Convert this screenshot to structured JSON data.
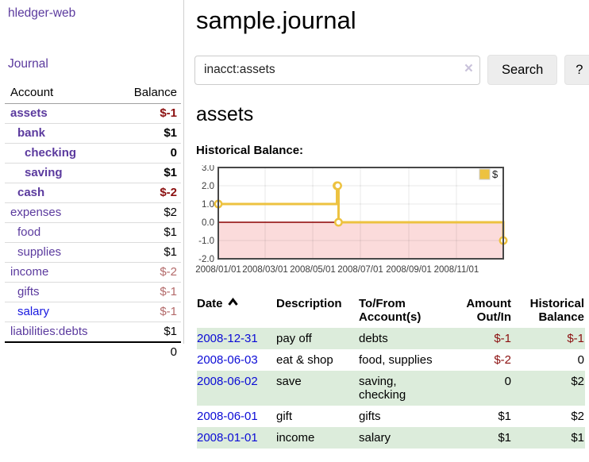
{
  "app_title": "hledger-web",
  "sidebar": {
    "journal_label": "Journal",
    "accounts_table": {
      "account_header": "Account",
      "balance_header": "Balance",
      "rows": [
        {
          "account": "assets",
          "balance": "$-1",
          "level": 1,
          "bold": true,
          "value_style": "negative-strong"
        },
        {
          "account": "bank",
          "balance": "$1",
          "level": 2,
          "bold": true,
          "value_style": "normal"
        },
        {
          "account": "checking",
          "balance": "0",
          "level": 3,
          "bold": true,
          "value_style": "normal"
        },
        {
          "account": "saving",
          "balance": "$1",
          "level": 3,
          "bold": true,
          "value_style": "normal"
        },
        {
          "account": "cash",
          "balance": "$-2",
          "level": 2,
          "bold": true,
          "value_style": "negative-strong"
        },
        {
          "account": "expenses",
          "balance": "$2",
          "level": 1,
          "bold": false,
          "value_style": "normal"
        },
        {
          "account": "food",
          "balance": "$1",
          "level": 2,
          "bold": false,
          "value_style": "normal"
        },
        {
          "account": "supplies",
          "balance": "$1",
          "level": 2,
          "bold": false,
          "value_style": "normal"
        },
        {
          "account": "income",
          "balance": "$-2",
          "level": 1,
          "bold": false,
          "value_style": "negative-muted"
        },
        {
          "account": "gifts",
          "balance": "$-1",
          "level": 2,
          "bold": false,
          "value_style": "negative-muted"
        },
        {
          "account": "salary",
          "balance": "$-1",
          "level": 2,
          "bold": false,
          "value_style": "negative-muted",
          "unvisited": true
        },
        {
          "account": "liabilities:debts",
          "balance": "$1",
          "level": 1,
          "bold": false,
          "value_style": "normal"
        }
      ],
      "total": "0"
    }
  },
  "main": {
    "title": "sample.journal",
    "search": {
      "value": "inacct:assets",
      "clear_icon": "×",
      "search_button": "Search",
      "help_button": "?"
    },
    "account_heading": "assets",
    "chart_title": "Historical Balance:"
  },
  "register": {
    "headers": {
      "date": "Date",
      "description": "Description",
      "accounts": "To/From Account(s)",
      "amount": "Amount Out/In",
      "balance": "Historical Balance"
    },
    "sort": "date-ascending",
    "rows": [
      {
        "date": "2008-12-31",
        "description": "pay off",
        "accounts": "debts",
        "amount": "$-1",
        "amount_negative": true,
        "balance": "$-1",
        "balance_negative": true
      },
      {
        "date": "2008-06-03",
        "description": "eat & shop",
        "accounts": "food, supplies",
        "amount": "$-2",
        "amount_negative": true,
        "balance": "0",
        "balance_negative": false
      },
      {
        "date": "2008-06-02",
        "description": "save",
        "accounts": "saving, checking",
        "amount": "0",
        "amount_negative": false,
        "balance": "$2",
        "balance_negative": false
      },
      {
        "date": "2008-06-01",
        "description": "gift",
        "accounts": "gifts",
        "amount": "$1",
        "amount_negative": false,
        "balance": "$2",
        "balance_negative": false
      },
      {
        "date": "2008-01-01",
        "description": "income",
        "accounts": "salary",
        "amount": "$1",
        "amount_negative": false,
        "balance": "$1",
        "balance_negative": false
      }
    ]
  },
  "chart_data": {
    "type": "line",
    "style": "step",
    "title": "Historical Balance:",
    "series": [
      {
        "name": "$",
        "color": "#EDC240",
        "points": [
          [
            "2008-01-01",
            1
          ],
          [
            "2008-06-01",
            2
          ],
          [
            "2008-06-02",
            2
          ],
          [
            "2008-06-03",
            0
          ],
          [
            "2008-12-31",
            -1
          ]
        ]
      }
    ],
    "x_range": [
      "2008-01-01",
      "2008-12-31"
    ],
    "x_ticks": [
      "2008/01/01",
      "2008/03/01",
      "2008/05/01",
      "2008/07/01",
      "2008/09/01",
      "2008/11/01"
    ],
    "y_ticks": [
      "3.0",
      "2.0",
      "1.0",
      "0.0",
      "-1.0",
      "-2.0"
    ],
    "ylim": [
      -2,
      3
    ],
    "grid": true,
    "legend_position": "top-right",
    "zero_line_color": "#8b0000",
    "negative_region_color": "#fbdbdb"
  },
  "colors": {
    "accent_purple": "#5b3a9e",
    "link_blue": "#0b0bd6",
    "negative_red": "#8b0f0f",
    "negative_muted": "#b36a6a",
    "chart_line_gold": "#EDC240",
    "row_stripe_green": "#dcecdb",
    "negative_region_pink": "#fbdbdb"
  }
}
